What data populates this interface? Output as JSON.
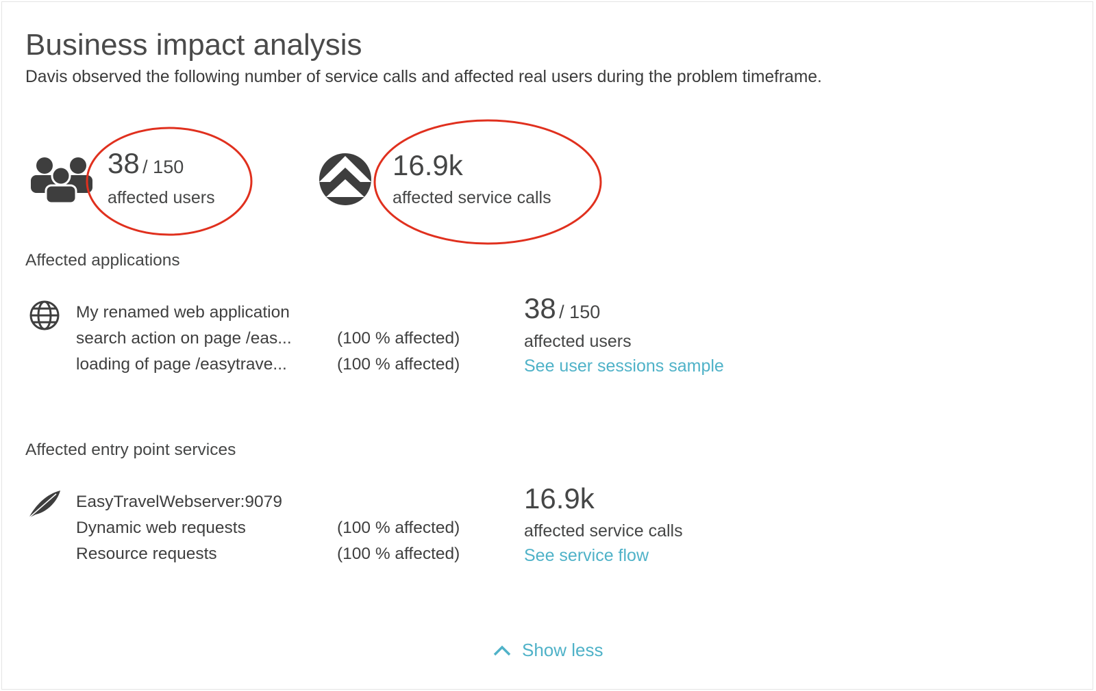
{
  "header": {
    "title": "Business impact analysis",
    "subtitle": "Davis observed the following number of service calls and affected real users during the problem timeframe."
  },
  "summary": {
    "users": {
      "value": "38",
      "total": "/ 150",
      "label": "affected users"
    },
    "calls": {
      "value": "16.9k",
      "label": "affected service calls"
    }
  },
  "applications": {
    "heading": "Affected applications",
    "items": [
      {
        "name": "My renamed web application",
        "rows": [
          {
            "action": "search action on page /eas...",
            "impact": "(100 % affected)"
          },
          {
            "action": "loading of page /easytrave...",
            "impact": "(100 % affected)"
          }
        ],
        "stat": {
          "value": "38",
          "total": "/ 150",
          "label": "affected users",
          "link": "See user sessions sample"
        }
      }
    ]
  },
  "services": {
    "heading": "Affected entry point services",
    "items": [
      {
        "name": "EasyTravelWebserver:9079",
        "rows": [
          {
            "action": "Dynamic web requests",
            "impact": "(100 % affected)"
          },
          {
            "action": "Resource requests",
            "impact": "(100 % affected)"
          }
        ],
        "stat": {
          "value": "16.9k",
          "label": "affected service calls",
          "link": "See service flow"
        }
      }
    ]
  },
  "footer": {
    "toggle": "Show less"
  }
}
